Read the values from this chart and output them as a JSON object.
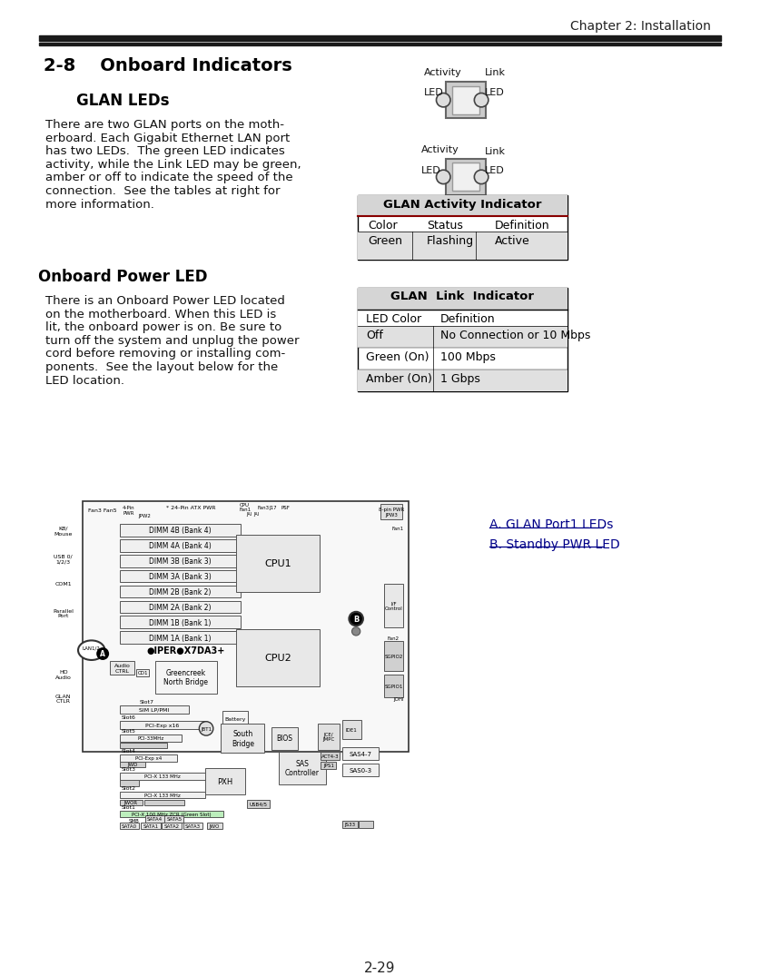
{
  "page_title": "Chapter 2: Installation",
  "section": "2-8    Onboard Indicators",
  "subsection1": "GLAN LEDs",
  "subsection2": "Onboard Power LED",
  "glan_text": [
    "There are two GLAN ports on the moth-",
    "erboard. Each Gigabit Ethernet LAN port",
    "has two LEDs.  The green LED indicates",
    "activity, while the Link LED may be green,",
    "amber or off to indicate the speed of the",
    "connection.  See the tables at right for",
    "more information."
  ],
  "power_text": [
    "There is an Onboard Power LED located",
    "on the motherboard. When this LED is",
    "lit, the onboard power is on. Be sure to",
    "turn off the system and unplug the power",
    "cord before removing or installing com-",
    "ponents.  See the layout below for the",
    "LED location."
  ],
  "activity_table_title": "GLAN Activity Indicator",
  "activity_table_headers": [
    "Color",
    "Status",
    "Definition"
  ],
  "activity_table_rows": [
    [
      "Green",
      "Flashing",
      "Active"
    ]
  ],
  "link_table_title": "GLAN  Link  Indicator",
  "link_table_headers": [
    "LED Color",
    "Definition"
  ],
  "link_table_rows": [
    [
      "Off",
      "No Connection or 10 Mbps"
    ],
    [
      "Green (On)",
      "100 Mbps"
    ],
    [
      "Amber (On)",
      "1 Gbps"
    ]
  ],
  "legend_a": "A. GLAN Port1 LEDs",
  "legend_b": "B. Standby PWR LED",
  "page_number": "2-29",
  "bg_color": "#ffffff",
  "header_bar_color": "#1a1a1a",
  "table_header_bg": "#d5d5d5",
  "table_row_bg": "#e0e0e0",
  "table_border": "#000000"
}
